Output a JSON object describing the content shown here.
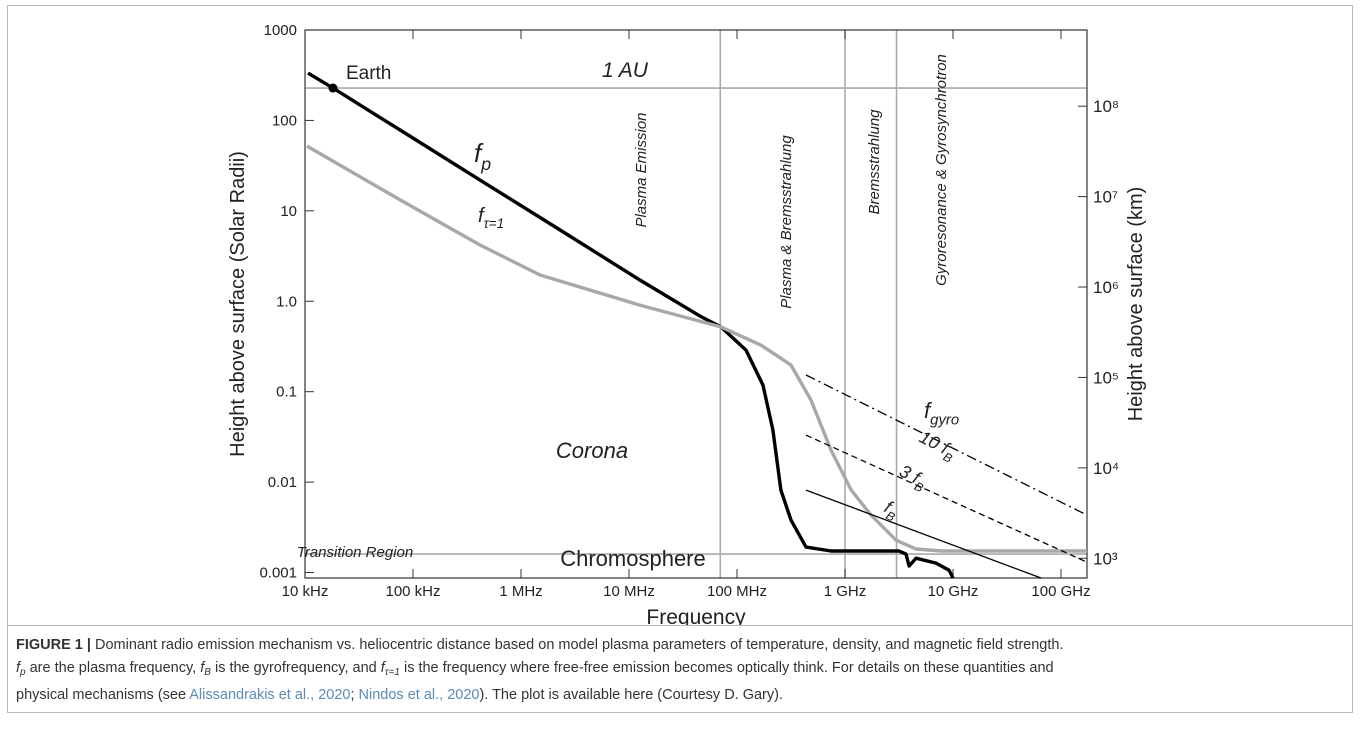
{
  "chart_data": {
    "type": "line",
    "xlabel": "Frequency",
    "ylabel": "Height above surface (Solar Radii)",
    "y2label": "Height above surface (km)",
    "xscale": "log",
    "yscale": "log",
    "xlim": [
      10000,
      174000000000
    ],
    "ylim": [
      0.00087,
      1000
    ],
    "y2lim": [
      605,
      696000000
    ],
    "xticks": [
      {
        "value": 10000,
        "label": "10 kHz"
      },
      {
        "value": 100000,
        "label": "100 kHz"
      },
      {
        "value": 1000000,
        "label": "1 MHz"
      },
      {
        "value": 10000000,
        "label": "10 MHz"
      },
      {
        "value": 100000000,
        "label": "100 MHz"
      },
      {
        "value": 1000000000,
        "label": "1 GHz"
      },
      {
        "value": 10000000000,
        "label": "10 GHz"
      },
      {
        "value": 100000000000,
        "label": "100 GHz"
      }
    ],
    "yticks": [
      0.001,
      0.01,
      0.1,
      {
        "value": 1,
        "label": "1.0"
      },
      10,
      100,
      1000
    ],
    "y2ticks": [
      {
        "value": 1000,
        "label": "10³"
      },
      {
        "value": 10000,
        "label": "10⁴"
      },
      {
        "value": 100000,
        "label": "10⁵"
      },
      {
        "value": 1000000,
        "label": "10⁶"
      },
      {
        "value": 10000000,
        "label": "10⁷"
      },
      {
        "value": 100000000,
        "label": "10⁸"
      }
    ],
    "series": [
      {
        "label": {
          "base": "f",
          "sub": "p"
        },
        "color": "#000000",
        "line_style": "heavy",
        "x": [
          10660,
          18150,
          75900,
          417000,
          2300000,
          12600000,
          45400000,
          71000000,
          121000000,
          174000000,
          215000000,
          255000000,
          316000000,
          435000000,
          741000000,
          1740000000,
          3160000000,
          3670000000,
          3920000000,
          4540000000,
          6960000000,
          9190000000,
          10000000000
        ],
        "values": [
          334,
          228,
          78.3,
          21.9,
          6.14,
          1.72,
          0.686,
          0.52,
          0.288,
          0.118,
          0.0376,
          0.00816,
          0.0038,
          0.00191,
          0.00173,
          0.00173,
          0.00173,
          0.0016,
          0.00118,
          0.00144,
          0.00127,
          0.00106,
          0.00087
        ]
      },
      {
        "label": {
          "base": "f",
          "sub": "τ=1"
        },
        "color": "#a8a8a8",
        "line_style": "heavy",
        "x": [
          10440,
          75900,
          417000,
          1500000,
          12600000,
          71000000,
          167000000,
          316000000,
          484000000,
          741000000,
          1140000000,
          1740000000,
          2970000000,
          4540000000,
          7740000000,
          174000000000
        ],
        "values": [
          52,
          13.2,
          4.19,
          1.95,
          0.908,
          0.52,
          0.327,
          0.197,
          0.0807,
          0.0226,
          0.00816,
          0.00432,
          0.00228,
          0.00182,
          0.00173,
          0.00173
        ]
      },
      {
        "label": {
          "base": "f",
          "sub": "B"
        },
        "color": "#000000",
        "line_style": "thin",
        "x": [
          435000000,
          65300000000
        ],
        "values": [
          0.00816,
          0.00087
        ]
      },
      {
        "label": {
          "base": "3 f",
          "sub": "B"
        },
        "color": "#000000",
        "line_style": "dashed",
        "x": [
          435000000,
          174000000000
        ],
        "values": [
          0.0331,
          0.0013
        ]
      },
      {
        "label": {
          "base": "10 f",
          "sub": "B"
        },
        "color": "#000000",
        "line_style": "dashdot",
        "x": [
          435000000,
          174000000000
        ],
        "values": [
          0.153,
          0.00432
        ]
      }
    ],
    "group_label": {
      "base": "f",
      "sub": "gyro"
    },
    "hlines": [
      {
        "value": 228,
        "label": "1 AU",
        "color": "#aaaaaa"
      },
      {
        "value": 0.0016,
        "label": "Transition Region",
        "color": "#aaaaaa"
      }
    ],
    "vlines": [
      {
        "value": 70000000,
        "color": "#aaaaaa"
      },
      {
        "value": 1000000000,
        "color": "#aaaaaa"
      },
      {
        "value": 3000000000,
        "color": "#aaaaaa"
      }
    ],
    "region_labels": [
      "Plasma Emission",
      "Plasma & Bremsstrahlung",
      "Bremsstrahlung",
      "Gyroresonance & Gyrosynchrotron"
    ],
    "annotations": [
      "Corona",
      "Chromosphere"
    ],
    "point": {
      "label": "Earth",
      "x": 18150,
      "y": 228,
      "color": "#000000"
    }
  },
  "caption": {
    "lines": [
      [
        {
          "text": "FIGURE 1 | ",
          "style": "bold"
        },
        {
          "text": "Dominant radio emission mechanism vs. heliocentric distance based on model plasma parameters of temperature, density, and magnetic field strength.",
          "style": "plain"
        }
      ],
      [
        {
          "text": "f",
          "style": "italic"
        },
        {
          "text": "p",
          "style": "sub"
        },
        {
          "text": " are the plasma frequency, ",
          "style": "plain"
        },
        {
          "text": "f",
          "style": "italic"
        },
        {
          "text": "B",
          "style": "sub"
        },
        {
          "text": " is the gyrofrequency, and ",
          "style": "plain"
        },
        {
          "text": "f",
          "style": "italic"
        },
        {
          "text": "τ=1",
          "style": "sub"
        },
        {
          "text": " is the frequency where free-free emission becomes optically think. For details on these quantities and",
          "style": "plain"
        }
      ],
      [
        {
          "text": "physical mechanisms (see ",
          "style": "plain"
        },
        {
          "text": "Alissandrakis et al., 2020",
          "style": "link"
        },
        {
          "text": "; ",
          "style": "plain"
        },
        {
          "text": "Nindos et al., 2020",
          "style": "link"
        },
        {
          "text": "). The plot is available here (Courtesy D. Gary).",
          "style": "plain"
        }
      ]
    ]
  }
}
